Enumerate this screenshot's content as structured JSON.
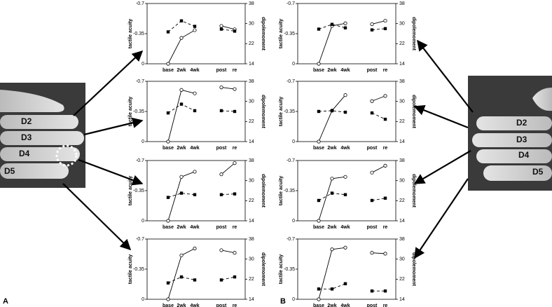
{
  "chart_data": [
    {
      "type": "line",
      "categories": [
        "base",
        "2wk",
        "4wk",
        null,
        "post",
        "re"
      ],
      "ylim": [
        0,
        -0.7
      ],
      "yticks": [
        -0.7,
        -0.35,
        0
      ],
      "y2lim": [
        14,
        38
      ],
      "y2ticks": [
        14,
        22,
        30,
        38
      ],
      "ylabel": "tactile acuity",
      "y2label": "dipolemoment",
      "series": [
        {
          "color": "#000",
          "marker": "circle",
          "values": [
            0,
            -0.3,
            -0.39,
            null,
            -0.44,
            -0.4
          ]
        },
        {
          "color": "#000",
          "marker": "square",
          "dashed": true,
          "axis": "y2",
          "values": [
            26.7,
            31.1,
            28.9,
            null,
            27.8,
            27.0
          ]
        }
      ]
    },
    {
      "type": "line",
      "categories": [
        "base",
        "2wk",
        "4wk",
        null,
        "post",
        "re"
      ],
      "ylim": [
        0,
        -0.7
      ],
      "yticks": [
        -0.7,
        -0.35,
        0
      ],
      "y2lim": [
        14,
        38
      ],
      "y2ticks": [
        14,
        22,
        30,
        38
      ],
      "ylabel": "tactile acuity",
      "y2label": "dipolemoment",
      "series": [
        {
          "color": "#000",
          "marker": "circle",
          "values": [
            0,
            -0.6,
            -0.56,
            null,
            -0.63,
            -0.61
          ]
        },
        {
          "color": "#000",
          "marker": "square",
          "dashed": true,
          "axis": "y2",
          "values": [
            25.4,
            28.9,
            26.3,
            null,
            26.3,
            26.0
          ]
        }
      ]
    },
    {
      "type": "line",
      "categories": [
        "base",
        "2wk",
        "4wk",
        null,
        "post",
        "re"
      ],
      "ylim": [
        0,
        -0.7
      ],
      "yticks": [
        -0.7,
        -0.35,
        0
      ],
      "y2lim": [
        14,
        38
      ],
      "y2ticks": [
        14,
        22,
        30,
        38
      ],
      "ylabel": "tactile acuity",
      "y2label": "dipolemoment",
      "series": [
        {
          "color": "#000",
          "marker": "circle",
          "values": [
            0,
            -0.51,
            -0.57,
            null,
            -0.54,
            -0.67
          ]
        },
        {
          "color": "#000",
          "marker": "square",
          "dashed": true,
          "axis": "y2",
          "values": [
            23.3,
            25.0,
            24.4,
            null,
            24.4,
            24.7
          ]
        }
      ]
    },
    {
      "type": "line",
      "categories": [
        "base",
        "2wk",
        "4wk",
        null,
        "post",
        "re"
      ],
      "ylim": [
        0,
        -0.7
      ],
      "yticks": [
        -0.7,
        -0.35,
        0
      ],
      "y2lim": [
        14,
        38
      ],
      "y2ticks": [
        14,
        22,
        30,
        38
      ],
      "ylabel": "tactile acuity",
      "y2label": "dipolemoment",
      "series": [
        {
          "color": "#000",
          "marker": "circle",
          "values": [
            0,
            -0.51,
            -0.59,
            null,
            -0.57,
            -0.54
          ]
        },
        {
          "color": "#000",
          "marker": "square",
          "dashed": true,
          "axis": "y2",
          "values": [
            20.5,
            22.9,
            21.7,
            null,
            21.7,
            22.9
          ]
        }
      ]
    },
    {
      "type": "line",
      "categories": [
        "base",
        "2wk",
        "4wk",
        null,
        "post",
        "re"
      ],
      "ylim": [
        0,
        -0.7
      ],
      "yticks": [
        -0.7,
        -0.35,
        0
      ],
      "y2lim": [
        14,
        38
      ],
      "y2ticks": [
        14,
        22,
        30,
        38
      ],
      "ylabel": "tactile acuity",
      "y2label": "dipolemoment",
      "series": [
        {
          "color": "#000",
          "marker": "circle",
          "values": [
            0,
            -0.44,
            -0.47,
            null,
            -0.46,
            -0.5
          ]
        },
        {
          "color": "#000",
          "marker": "square",
          "dashed": true,
          "axis": "y2",
          "values": [
            27.8,
            29.7,
            28.3,
            null,
            27.5,
            28.0
          ]
        }
      ]
    },
    {
      "type": "line",
      "categories": [
        "base",
        "2wk",
        "4wk",
        null,
        "post",
        "re"
      ],
      "ylim": [
        0,
        -0.7
      ],
      "yticks": [
        -0.7,
        -0.35,
        0
      ],
      "y2lim": [
        14,
        38
      ],
      "y2ticks": [
        14,
        22,
        30,
        38
      ],
      "ylabel": "tactile acuity",
      "y2label": "dipolemoment",
      "series": [
        {
          "color": "#000",
          "marker": "circle",
          "values": [
            0,
            -0.36,
            -0.54,
            null,
            -0.47,
            -0.53
          ]
        },
        {
          "color": "#000",
          "marker": "square",
          "dashed": true,
          "axis": "y2",
          "values": [
            26.0,
            26.3,
            25.7,
            null,
            25.4,
            22.9
          ]
        }
      ]
    },
    {
      "type": "line",
      "categories": [
        "base",
        "2wk",
        "4wk",
        null,
        "post",
        "re"
      ],
      "ylim": [
        0,
        -0.7
      ],
      "yticks": [
        -0.7,
        -0.35,
        0
      ],
      "y2lim": [
        14,
        38
      ],
      "y2ticks": [
        14,
        22,
        30,
        38
      ],
      "ylabel": "tactile acuity",
      "y2label": "dipolemoment",
      "series": [
        {
          "color": "#000",
          "marker": "circle",
          "values": [
            0,
            -0.49,
            -0.51,
            null,
            -0.56,
            -0.64
          ]
        },
        {
          "color": "#000",
          "marker": "square",
          "dashed": true,
          "axis": "y2",
          "values": [
            22.1,
            25.0,
            24.4,
            null,
            22.1,
            23.0
          ]
        }
      ]
    },
    {
      "type": "line",
      "categories": [
        "base",
        "2wk",
        "4wk",
        null,
        "post",
        "re"
      ],
      "ylim": [
        0,
        -0.7
      ],
      "yticks": [
        -0.7,
        -0.35,
        0
      ],
      "y2lim": [
        14,
        38
      ],
      "y2ticks": [
        14,
        22,
        30,
        38
      ],
      "ylabel": "tactile acuity",
      "y2label": "dipolemoment",
      "series": [
        {
          "color": "#000",
          "marker": "circle",
          "values": [
            0,
            -0.58,
            -0.6,
            null,
            -0.54,
            -0.53
          ]
        },
        {
          "color": "#000",
          "marker": "square",
          "dashed": true,
          "axis": "y2",
          "values": [
            18.1,
            18.1,
            20.2,
            null,
            17.3,
            17.3
          ]
        }
      ]
    }
  ],
  "panel_labels": [
    "A",
    "B"
  ],
  "left_fingers": [
    "D2",
    "D3",
    "D4",
    "D5"
  ],
  "right_fingers": [
    "D2",
    "D3",
    "D4",
    "D5"
  ]
}
